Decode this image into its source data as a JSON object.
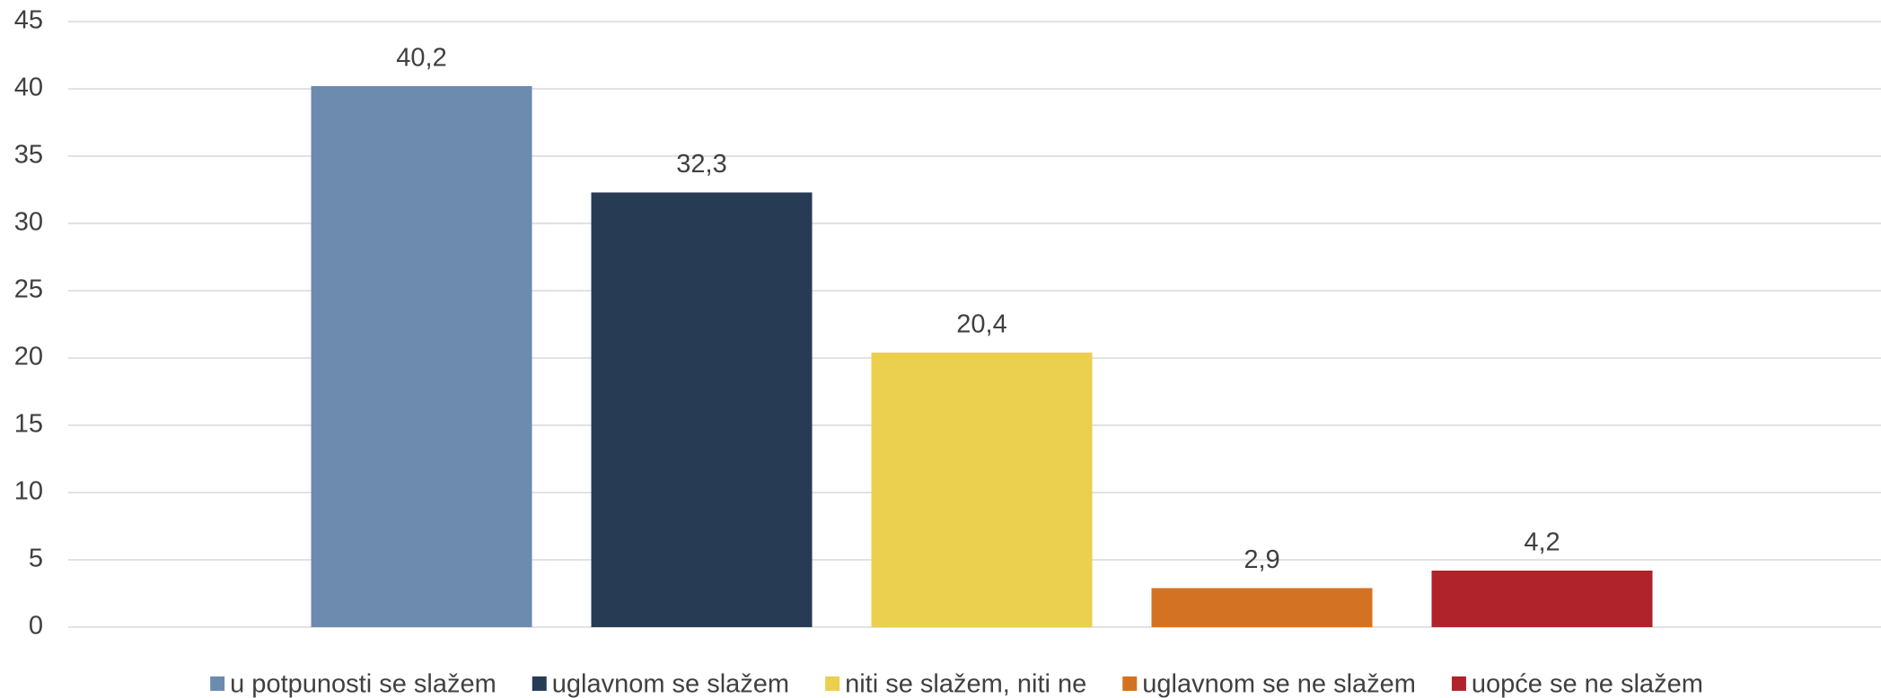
{
  "chart_data": {
    "type": "bar",
    "categories": [
      null
    ],
    "series": [
      {
        "name": "u potpunosti se slažem",
        "color": "#6d8aaf",
        "values": [
          40.2
        ],
        "value_labels": [
          "40,2"
        ]
      },
      {
        "name": "uglavnom se slažem",
        "color": "#283b55",
        "values": [
          32.3
        ],
        "value_labels": [
          "32,3"
        ]
      },
      {
        "name": "niti se slažem, niti ne",
        "color": "#ebcf4e",
        "values": [
          20.4
        ],
        "value_labels": [
          "20,4"
        ]
      },
      {
        "name": "uglavnom se ne slažem",
        "color": "#d47223",
        "values": [
          2.9
        ],
        "value_labels": [
          "2,9"
        ]
      },
      {
        "name": "uopće se ne slažem",
        "color": "#b0232a",
        "values": [
          4.2
        ],
        "value_labels": [
          "4,2"
        ]
      }
    ],
    "ylim": [
      0,
      45
    ],
    "yticks": [
      0,
      5,
      10,
      15,
      20,
      25,
      30,
      35,
      40,
      45
    ],
    "grid": true,
    "legend": "bottom"
  }
}
